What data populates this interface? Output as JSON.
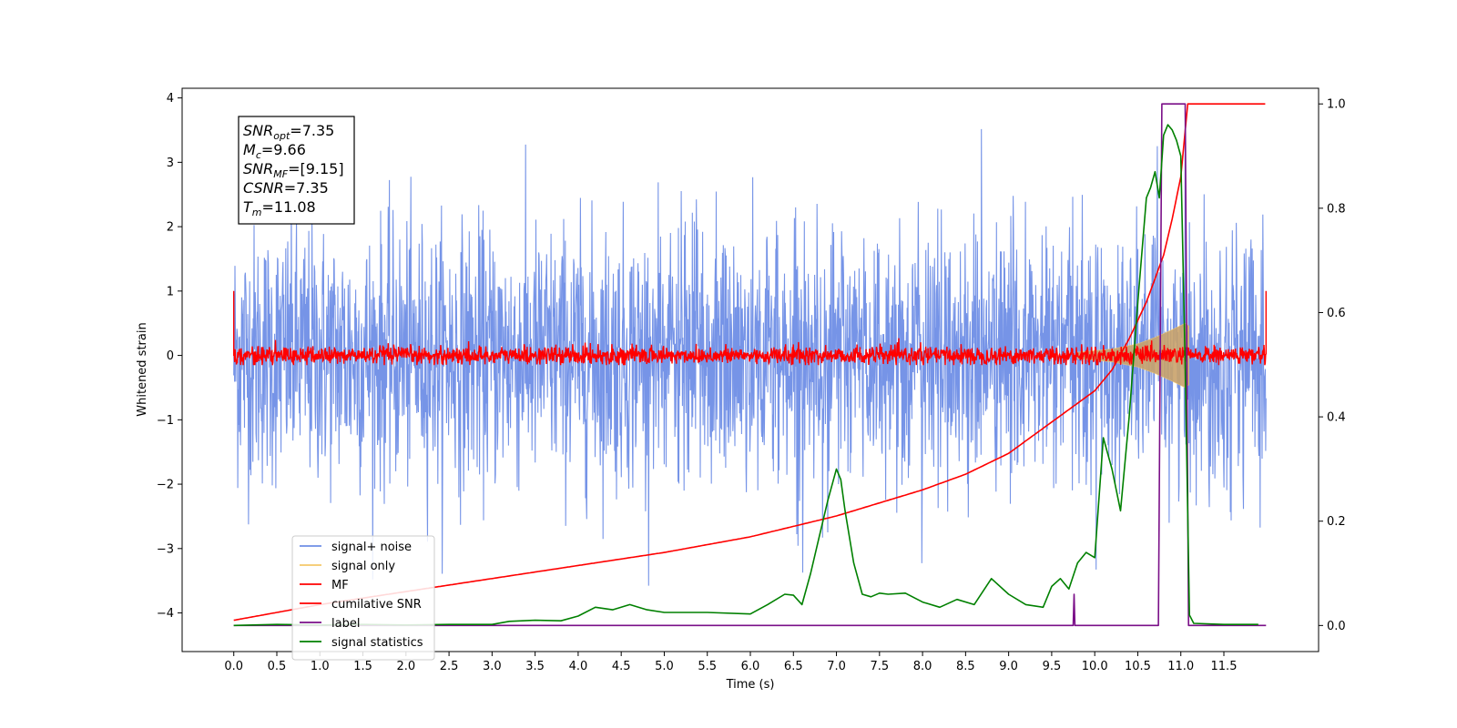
{
  "chart_data": {
    "type": "line",
    "xlabel": "Time (s)",
    "ylabel": "Whitened strain",
    "xlim": [
      -0.6,
      12.6
    ],
    "ylim": [
      -4.6,
      4.15
    ],
    "y2lim": [
      -0.05,
      1.03
    ],
    "xticks": [
      0.0,
      0.5,
      1.0,
      1.5,
      2.0,
      2.5,
      3.0,
      3.5,
      4.0,
      4.5,
      5.0,
      5.5,
      6.0,
      6.5,
      7.0,
      7.5,
      8.0,
      8.5,
      9.0,
      9.5,
      10.0,
      10.5,
      11.0,
      11.5
    ],
    "xtick_labels": [
      "0.0",
      "0.5",
      "1.0",
      "1.5",
      "2.0",
      "2.5",
      "3.0",
      "3.5",
      "4.0",
      "4.5",
      "5.0",
      "5.5",
      "6.0",
      "6.5",
      "7.0",
      "7.5",
      "8.0",
      "8.5",
      "9.0",
      "9.5",
      "10.0",
      "10.5",
      "11.0",
      "11.5"
    ],
    "yticks": [
      -4,
      -3,
      -2,
      -1,
      0,
      1,
      2,
      3,
      4
    ],
    "ytick_labels": [
      "−4",
      "−3",
      "−2",
      "−1",
      "0",
      "1",
      "2",
      "3",
      "4"
    ],
    "y2ticks": [
      0.0,
      0.2,
      0.4,
      0.6,
      0.8,
      1.0
    ],
    "y2tick_labels": [
      "0.0",
      "0.2",
      "0.4",
      "0.6",
      "0.8",
      "1.0"
    ],
    "grid": false,
    "legend_position": "bottom-left",
    "series": [
      {
        "name": "signal+ noise",
        "axis": "left",
        "color": "#6f8ee6",
        "style": "noise",
        "t_range": [
          0.0,
          11.99
        ],
        "sigma": 1.0,
        "peak_max": 3.99,
        "peak_min": -3.7
      },
      {
        "name": "signal only",
        "axis": "left",
        "color": "#f5c86a",
        "fill_color": "#c9a36b",
        "style": "chirp",
        "envelope": {
          "x": [
            9.8,
            10.2,
            10.5,
            10.7,
            10.9,
            11.05,
            11.1
          ],
          "y": [
            0.05,
            0.1,
            0.18,
            0.28,
            0.4,
            0.5,
            0.45
          ]
        }
      },
      {
        "name": "MF",
        "axis": "left",
        "color": "#ff0000",
        "style": "noise",
        "t_range": [
          0.0,
          11.99
        ],
        "sigma": 0.07,
        "peak_max": 0.35,
        "peak_min": -0.15,
        "endpoints": 1.0
      },
      {
        "name": "cumilative SNR",
        "axis": "right",
        "color": "#ff0000",
        "x": [
          0.0,
          1.0,
          2.0,
          3.0,
          4.0,
          5.0,
          6.0,
          7.0,
          8.0,
          8.5,
          9.0,
          9.5,
          10.0,
          10.2,
          10.4,
          10.6,
          10.8,
          10.9,
          11.0,
          11.08,
          11.99
        ],
        "y": [
          0.01,
          0.04,
          0.065,
          0.09,
          0.115,
          0.14,
          0.17,
          0.21,
          0.26,
          0.29,
          0.33,
          0.39,
          0.45,
          0.49,
          0.55,
          0.62,
          0.71,
          0.78,
          0.86,
          1.0,
          1.0
        ]
      },
      {
        "name": "label",
        "axis": "right",
        "color": "#7a0f88",
        "x": [
          0.0,
          9.75,
          9.76,
          9.77,
          10.74,
          10.78,
          11.05,
          11.09,
          11.99
        ],
        "y": [
          0.0,
          0.0,
          0.06,
          0.0,
          0.0,
          1.0,
          1.0,
          0.0,
          0.0
        ]
      },
      {
        "name": "signal statistics",
        "axis": "right",
        "color": "#008000",
        "x": [
          0.0,
          0.5,
          1.0,
          1.5,
          2.0,
          2.5,
          3.0,
          3.2,
          3.5,
          3.8,
          4.0,
          4.2,
          4.4,
          4.6,
          4.8,
          5.0,
          5.5,
          6.0,
          6.2,
          6.4,
          6.5,
          6.6,
          6.7,
          6.8,
          6.9,
          7.0,
          7.05,
          7.1,
          7.2,
          7.3,
          7.4,
          7.5,
          7.6,
          7.8,
          8.0,
          8.2,
          8.4,
          8.6,
          8.8,
          9.0,
          9.2,
          9.4,
          9.5,
          9.6,
          9.7,
          9.8,
          9.9,
          10.0,
          10.1,
          10.2,
          10.3,
          10.4,
          10.5,
          10.6,
          10.65,
          10.7,
          10.75,
          10.8,
          10.85,
          10.9,
          10.95,
          11.0,
          11.05,
          11.1,
          11.15,
          11.5,
          11.9
        ],
        "y": [
          0.0,
          0.002,
          0.001,
          0.002,
          0.001,
          0.002,
          0.002,
          0.008,
          0.01,
          0.009,
          0.018,
          0.035,
          0.03,
          0.04,
          0.03,
          0.025,
          0.025,
          0.022,
          0.04,
          0.06,
          0.058,
          0.04,
          0.1,
          0.17,
          0.24,
          0.3,
          0.28,
          0.22,
          0.12,
          0.06,
          0.055,
          0.062,
          0.06,
          0.062,
          0.045,
          0.035,
          0.05,
          0.04,
          0.09,
          0.06,
          0.04,
          0.035,
          0.075,
          0.09,
          0.07,
          0.12,
          0.14,
          0.13,
          0.36,
          0.3,
          0.22,
          0.4,
          0.62,
          0.82,
          0.84,
          0.87,
          0.82,
          0.94,
          0.96,
          0.95,
          0.93,
          0.9,
          0.5,
          0.02,
          0.004,
          0.002,
          0.002
        ]
      }
    ],
    "annotation": [
      {
        "base": "SNR",
        "sub": "opt",
        "value": "=7.35"
      },
      {
        "base": "M",
        "sub": "c",
        "value": "=9.66"
      },
      {
        "base": "SNR",
        "sub": "MF",
        "value": "=[9.15]"
      },
      {
        "base": "CSNR",
        "sub": "",
        "value": "=7.35"
      },
      {
        "base": "T",
        "sub": "m",
        "value": "=11.08"
      }
    ]
  }
}
